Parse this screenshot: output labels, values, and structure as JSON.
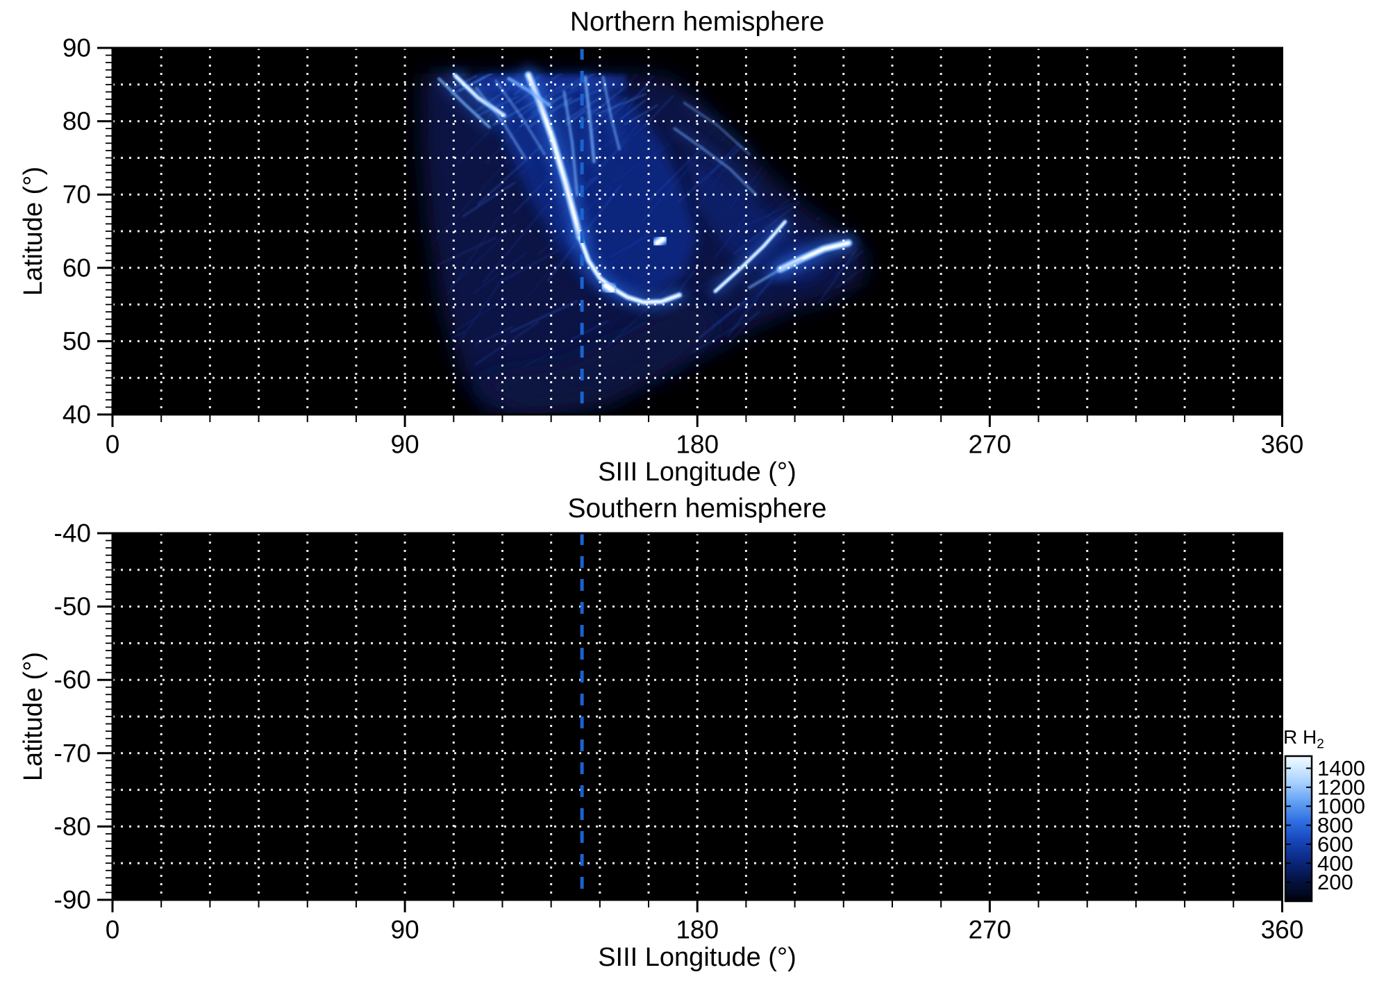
{
  "colors": {
    "figure_background": "#ffffff",
    "plot_background": "#000000",
    "grid": "#ffffff",
    "frame": "#000000",
    "reference_line": "#1a63d0",
    "text": "#000000"
  },
  "chart_data": {
    "type": "heatmap",
    "description": "Two-panel map of auroral H2 emission brightness (kR) versus SIII longitude and latitude; bright aurora visible only in the northern hemisphere panel, southern panel has no data (black).",
    "panels": [
      {
        "id": "north",
        "title": "Northern hemisphere",
        "xlabel": "SIII Longitude (°)",
        "ylabel": "Latitude (°)",
        "xlim": [
          0,
          360
        ],
        "ylim": [
          40,
          90
        ],
        "x_major_ticks": [
          0,
          90,
          180,
          270,
          360
        ],
        "x_minor_step": 15,
        "x_grid_step": 15,
        "y_major_ticks": [
          90,
          80,
          70,
          60,
          50,
          40
        ],
        "y_minor_step": 1,
        "y_grid_step": 5,
        "grid": true,
        "background": "#000000",
        "reference_line": {
          "lon": 144.5,
          "style": "dashed",
          "color": "#1a63d0"
        },
        "aurora": {
          "present": true,
          "extent_lon": [
            95,
            233
          ],
          "extent_lat": [
            40,
            87
          ],
          "regions": [
            {
              "name": "diffuse-emission-outer",
              "color": "#071449",
              "opacity": 0.95,
              "blur": "lg",
              "points": [
                [
                  95,
                  86.5
                ],
                [
                  160,
                  86.5
                ],
                [
                  172,
                  86
                ],
                [
                  182,
                  82
                ],
                [
                  192,
                  77.5
                ],
                [
                  203,
                  72.5
                ],
                [
                  214,
                  68
                ],
                [
                  226,
                  64.5
                ],
                [
                  233,
                  61.5
                ],
                [
                  230,
                  57.5
                ],
                [
                  220,
                  55.5
                ],
                [
                  208,
                  54
                ],
                [
                  196,
                  51.5
                ],
                [
                  184,
                  48.5
                ],
                [
                  172,
                  46
                ],
                [
                  158,
                  43.5
                ],
                [
                  144,
                  41
                ],
                [
                  130,
                  40
                ],
                [
                  116,
                  40
                ],
                [
                  107,
                  46
                ],
                [
                  101,
                  55
                ],
                [
                  97,
                  66
                ],
                [
                  95,
                  76
                ]
              ]
            },
            {
              "name": "diffuse-emission-inner",
              "color": "#0e2c8c",
              "opacity": 0.8,
              "blur": "md",
              "points": [
                [
                  113,
                  86
                ],
                [
                  148,
                  86
                ],
                [
                  160,
                  82.5
                ],
                [
                  169,
                  77
                ],
                [
                  176,
                  70.5
                ],
                [
                  180,
                  64
                ],
                [
                  176,
                  59
                ],
                [
                  167,
                  56.5
                ],
                [
                  156,
                  55.5
                ],
                [
                  146,
                  58
                ],
                [
                  137,
                  63
                ],
                [
                  128,
                  70
                ],
                [
                  120,
                  78
                ]
              ]
            },
            {
              "name": "diffuse-emission-right-lobe",
              "color": "#0c2472",
              "opacity": 0.75,
              "blur": "md",
              "points": [
                [
                  176,
                  76
                ],
                [
                  190,
                  72
                ],
                [
                  204,
                  66.5
                ],
                [
                  216,
                  62.5
                ],
                [
                  222,
                  60.5
                ],
                [
                  214,
                  58
                ],
                [
                  202,
                  58.5
                ],
                [
                  190,
                  62
                ],
                [
                  180,
                  68
                ]
              ]
            },
            {
              "name": "diffuse-emission-lower",
              "color": "#081540",
              "opacity": 0.85,
              "blur": "lg",
              "points": [
                [
                  108,
                  44
                ],
                [
                  128,
                  40
                ],
                [
                  152,
                  41
                ],
                [
                  172,
                  46
                ],
                [
                  188,
                  52
                ],
                [
                  178,
                  56
                ],
                [
                  158,
                  51
                ],
                [
                  138,
                  47
                ],
                [
                  120,
                  46
                ]
              ]
            },
            {
              "name": "top-emission-band",
              "color": "#15359f",
              "opacity": 0.75,
              "blur": "sm",
              "points": [
                [
                  112,
                  86.3
                ],
                [
                  158,
                  86.3
                ],
                [
                  158,
                  84.3
                ],
                [
                  112,
                  84
                ]
              ]
            }
          ],
          "textures": [
            {
              "seed": 11,
              "count": 100,
              "lon_min": 96,
              "lon_span": 130,
              "lat_min": 46,
              "lat_span": 38,
              "len_min": 8,
              "len_span": 20,
              "slope_base": 0.45,
              "slope_jitter": 0.5,
              "w_min": 1.0,
              "w_span": 2.0,
              "op_min": 0.1,
              "op_span": 0.3,
              "palette": [
                "#16349c",
                "#1d44b8",
                "#2a58cc",
                "#3568d8"
              ]
            },
            {
              "seed": 5,
              "count": 30,
              "lon_min": 104,
              "lon_span": 54,
              "lat_min": 79,
              "lat_span": 7,
              "len_min": 5,
              "len_span": 10,
              "slope_base": 0.28,
              "slope_jitter": 0.2,
              "w_min": 1.2,
              "w_span": 1.6,
              "op_min": 0.25,
              "op_span": 0.35,
              "palette": [
                "#3a74e0",
                "#5c96ee",
                "#2f5fd0"
              ]
            }
          ],
          "arcs": [
            {
              "name": "main-arc-upper",
              "style": "full",
              "width": 5.5,
              "opacity": 1,
              "peak_kR": 1500,
              "points": [
                [
                  128,
                  86.3
                ],
                [
                  131.5,
                  82.5
                ],
                [
                  135.5,
                  77.5
                ],
                [
                  139.5,
                  71.5
                ],
                [
                  142.5,
                  66.5
                ],
                [
                  143.8,
                  64.2
                ]
              ]
            },
            {
              "name": "main-oval-arc",
              "style": "full",
              "width": 4,
              "opacity": 1,
              "peak_kR": 1300,
              "points": [
                [
                  143.8,
                  64.2
                ],
                [
                  146.5,
                  61
                ],
                [
                  150,
                  58.6
                ],
                [
                  154,
                  57.2
                ],
                [
                  158.5,
                  56
                ],
                [
                  163.5,
                  55.3
                ],
                [
                  169,
                  55.4
                ],
                [
                  174.5,
                  56.3
                ]
              ]
            },
            {
              "name": "oval-bright-blob",
              "style": "full",
              "width": 8,
              "opacity": 1,
              "peak_kR": 1450,
              "points": [
                [
                  151.8,
                  57.6
                ],
                [
                  153.8,
                  57.0
                ]
              ]
            },
            {
              "name": "left-streak-bright",
              "style": "full",
              "width": 3.5,
              "opacity": 1,
              "peak_kR": 1200,
              "points": [
                [
                  105.5,
                  86.2
                ],
                [
                  112.5,
                  83.2
                ],
                [
                  120.5,
                  80.8
                ]
              ]
            },
            {
              "name": "left-streak-faint",
              "style": "mid",
              "width": 2.2,
              "opacity": 0.75,
              "peak_kR": 700,
              "points": [
                [
                  100.5,
                  85.8
                ],
                [
                  108,
                  82.5
                ],
                [
                  116,
                  79.2
                ]
              ]
            },
            {
              "name": "top-band-streak",
              "style": "mid",
              "width": 2.6,
              "opacity": 0.8,
              "peak_kR": 800,
              "points": [
                [
                  122,
                  85.8
                ],
                [
                  128,
                  84.2
                ],
                [
                  134.5,
                  82.2
                ]
              ]
            },
            {
              "name": "polar-streak-1",
              "style": "mid",
              "width": 2.4,
              "opacity": 0.7,
              "peak_kR": 700,
              "points": [
                [
                  145.5,
                  86
                ],
                [
                  147,
                  80
                ],
                [
                  148.2,
                  74.5
                ]
              ]
            },
            {
              "name": "polar-streak-2",
              "style": "mid",
              "width": 2,
              "opacity": 0.55,
              "peak_kR": 500,
              "points": [
                [
                  151,
                  86
                ],
                [
                  153.5,
                  80.5
                ],
                [
                  156,
                  76.2
                ]
              ]
            },
            {
              "name": "center-vertical-streak",
              "style": "mid",
              "width": 2.2,
              "opacity": 0.6,
              "peak_kR": 600,
              "points": [
                [
                  139,
                  84
                ],
                [
                  141.5,
                  77
                ],
                [
                  143,
                  70
                ]
              ]
            },
            {
              "name": "left-fan-streak-1",
              "style": "mid",
              "width": 2,
              "opacity": 0.5,
              "peak_kR": 500,
              "points": [
                [
                  112,
                  84.5
                ],
                [
                  120,
                  80
                ],
                [
                  127,
                  75
                ]
              ]
            },
            {
              "name": "left-fan-streak-2",
              "style": "mid",
              "width": 2,
              "opacity": 0.45,
              "peak_kR": 450,
              "points": [
                [
                  118,
                  85.5
                ],
                [
                  126,
                  80.5
                ],
                [
                  133,
                  75.5
                ]
              ]
            },
            {
              "name": "right-arc-inner",
              "style": "full",
              "width": 2.8,
              "opacity": 1,
              "peak_kR": 1000,
              "points": [
                [
                  185.5,
                  56.8
                ],
                [
                  193,
                  59.8
                ],
                [
                  200.5,
                  63
                ],
                [
                  207,
                  66.3
                ]
              ]
            },
            {
              "name": "right-arc-bright",
              "style": "full",
              "width": 5.5,
              "opacity": 1,
              "peak_kR": 1500,
              "points": [
                [
                  205.5,
                  59.8
                ],
                [
                  212,
                  61.2
                ],
                [
                  219,
                  62.6
                ],
                [
                  226.5,
                  63.4
                ]
              ]
            },
            {
              "name": "right-arc-faint",
              "style": "mid",
              "width": 2,
              "opacity": 0.6,
              "peak_kR": 500,
              "points": [
                [
                  196,
                  57.3
                ],
                [
                  204,
                  59.4
                ],
                [
                  212,
                  61.0
                ]
              ]
            },
            {
              "name": "emission-spot",
              "style": "full",
              "width": 7,
              "opacity": 1,
              "peak_kR": 1300,
              "points": [
                [
                  167.6,
                  63.4
                ],
                [
                  169.4,
                  63.9
                ]
              ]
            },
            {
              "name": "polar-faint-arc-1",
              "style": "mid",
              "width": 2,
              "opacity": 0.5,
              "peak_kR": 450,
              "points": [
                [
                  173,
                  79
                ],
                [
                  181,
                  76.5
                ],
                [
                  190,
                  73.5
                ],
                [
                  198,
                  70
                ]
              ]
            },
            {
              "name": "polar-faint-arc-2",
              "style": "mid",
              "width": 1.8,
              "opacity": 0.4,
              "peak_kR": 400,
              "points": [
                [
                  176,
                  82.5
                ],
                [
                  186,
                  79.5
                ],
                [
                  196,
                  75.5
                ]
              ]
            }
          ]
        }
      },
      {
        "id": "south",
        "title": "Southern hemisphere",
        "xlabel": "SIII Longitude (°)",
        "ylabel": "Latitude (°)",
        "xlim": [
          0,
          360
        ],
        "ylim": [
          -90,
          -40
        ],
        "x_major_ticks": [
          0,
          90,
          180,
          270,
          360
        ],
        "x_minor_step": 15,
        "x_grid_step": 15,
        "y_major_ticks": [
          -40,
          -50,
          -60,
          -70,
          -80,
          -90
        ],
        "y_minor_step": 1,
        "y_grid_step": 5,
        "grid": true,
        "background": "#000000",
        "reference_line": {
          "lon": 144.5,
          "style": "dashed",
          "color": "#1a63d0"
        },
        "aurora": {
          "present": false,
          "regions": [],
          "textures": [],
          "arcs": []
        }
      }
    ],
    "colorbar": {
      "label_main": "kR H",
      "label_sub": "2",
      "range": [
        0,
        1528
      ],
      "ticks": [
        1400,
        1200,
        1000,
        800,
        600,
        400,
        200
      ],
      "gradient": [
        {
          "offset": 0.0,
          "color": "#f4fbff"
        },
        {
          "offset": 0.06,
          "color": "#dbeeff"
        },
        {
          "offset": 0.18,
          "color": "#a8d2ff"
        },
        {
          "offset": 0.32,
          "color": "#5f9ff2"
        },
        {
          "offset": 0.45,
          "color": "#2f6ee2"
        },
        {
          "offset": 0.58,
          "color": "#1747bc"
        },
        {
          "offset": 0.71,
          "color": "#0b2a84"
        },
        {
          "offset": 0.84,
          "color": "#051548"
        },
        {
          "offset": 0.94,
          "color": "#020a24"
        },
        {
          "offset": 1.0,
          "color": "#000008"
        }
      ]
    }
  }
}
